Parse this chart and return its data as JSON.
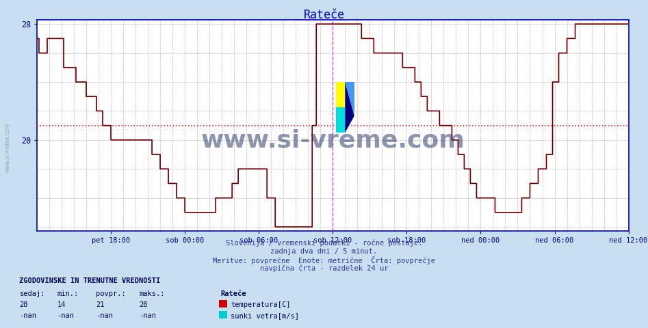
{
  "title": "Rateče",
  "title_color": "#0000bb",
  "bg_color": "#c8dff0",
  "plot_bg_color": "#ffffff",
  "grid_v_color": "#dd8888",
  "grid_h_color": "#aaaacc",
  "line_color": "#cc0000",
  "black_line_color": "#000000",
  "avg_line_color": "#dd2222",
  "avg_line_value": 21,
  "vline_color": "#cc44cc",
  "vline_color2": "#aa00aa",
  "ymin": 14,
  "ymax": 28,
  "xlabel_color": "#000088",
  "text_color": "#000066",
  "watermark": "www.si-vreme.com",
  "watermark_color": "#1a3060",
  "footnote_lines": [
    "Slovenija / vremenski podatki - ročne postaje.",
    "zadnja dva dni / 5 minut.",
    "Meritve: povprečne  Enote: metrične  Črta: povprečje",
    "navpična črta - razdelek 24 ur"
  ],
  "legend_title": "ZGODOVINSKE IN TRENUTNE VREDNOSTI",
  "legend_headers": [
    "sedaj:",
    "min.:",
    "povpr.:",
    "maks.:"
  ],
  "legend_values_temp": [
    "28",
    "14",
    "21",
    "28"
  ],
  "legend_values_wind": [
    "-nan",
    "-nan",
    "-nan",
    "-nan"
  ],
  "legend_series": [
    "temperatura[C]",
    "sunki vetra[m/s]"
  ],
  "legend_colors": [
    "#cc0000",
    "#00cccc"
  ],
  "x_tick_labels": [
    "pet 18:00",
    "sob 00:00",
    "sob 06:00",
    "sob 12:00",
    "sob 18:00",
    "ned 00:00",
    "ned 06:00",
    "ned 12:00"
  ],
  "n_points": 576,
  "temp_data": [
    27,
    27,
    26,
    26,
    26,
    26,
    26,
    26,
    26,
    26,
    27,
    27,
    27,
    27,
    27,
    27,
    27,
    27,
    27,
    27,
    27,
    27,
    27,
    27,
    27,
    27,
    25,
    25,
    25,
    25,
    25,
    25,
    25,
    25,
    25,
    25,
    25,
    25,
    24,
    24,
    24,
    24,
    24,
    24,
    24,
    24,
    24,
    24,
    23,
    23,
    23,
    23,
    23,
    23,
    23,
    23,
    23,
    23,
    22,
    22,
    22,
    22,
    22,
    22,
    21,
    21,
    21,
    21,
    21,
    21,
    21,
    21,
    20,
    20,
    20,
    20,
    20,
    20,
    20,
    20,
    20,
    20,
    20,
    20,
    20,
    20,
    20,
    20,
    20,
    20,
    20,
    20,
    20,
    20,
    20,
    20,
    20,
    20,
    20,
    20,
    20,
    20,
    20,
    20,
    20,
    20,
    20,
    20,
    20,
    20,
    20,
    20,
    19,
    19,
    19,
    19,
    19,
    19,
    19,
    19,
    18,
    18,
    18,
    18,
    18,
    18,
    18,
    18,
    17,
    17,
    17,
    17,
    17,
    17,
    17,
    17,
    16,
    16,
    16,
    16,
    16,
    16,
    16,
    16,
    15,
    15,
    15,
    15,
    15,
    15,
    15,
    15,
    15,
    15,
    15,
    15,
    15,
    15,
    15,
    15,
    15,
    15,
    15,
    15,
    15,
    15,
    15,
    15,
    15,
    15,
    15,
    15,
    15,
    15,
    16,
    16,
    16,
    16,
    16,
    16,
    16,
    16,
    16,
    16,
    16,
    16,
    16,
    16,
    16,
    16,
    17,
    17,
    17,
    17,
    17,
    17,
    18,
    18,
    18,
    18,
    18,
    18,
    18,
    18,
    18,
    18,
    18,
    18,
    18,
    18,
    18,
    18,
    18,
    18,
    18,
    18,
    18,
    18,
    18,
    18,
    18,
    18,
    18,
    18,
    16,
    16,
    16,
    16,
    16,
    16,
    16,
    16,
    14,
    14,
    14,
    14,
    14,
    14,
    14,
    14,
    14,
    14,
    14,
    14,
    14,
    14,
    14,
    14,
    14,
    14,
    14,
    14,
    14,
    14,
    14,
    14,
    14,
    14,
    14,
    14,
    14,
    14,
    14,
    14,
    14,
    14,
    14,
    14,
    21,
    21,
    21,
    21,
    28,
    28,
    28,
    28,
    28,
    28,
    28,
    28,
    28,
    28,
    28,
    28,
    28,
    28,
    28,
    28,
    28,
    28,
    28,
    28,
    28,
    28,
    28,
    28,
    28,
    28,
    28,
    28,
    28,
    28,
    28,
    28,
    28,
    28,
    28,
    28,
    28,
    28,
    28,
    28,
    28,
    28,
    28,
    28,
    27,
    27,
    27,
    27,
    27,
    27,
    27,
    27,
    27,
    27,
    27,
    27,
    26,
    26,
    26,
    26,
    26,
    26,
    26,
    26,
    26,
    26,
    26,
    26,
    26,
    26,
    26,
    26,
    26,
    26,
    26,
    26,
    26,
    26,
    26,
    26,
    26,
    26,
    26,
    26,
    25,
    25,
    25,
    25,
    25,
    25,
    25,
    25,
    25,
    25,
    25,
    25,
    24,
    24,
    24,
    24,
    24,
    24,
    23,
    23,
    23,
    23,
    23,
    23,
    22,
    22,
    22,
    22,
    22,
    22,
    22,
    22,
    22,
    22,
    22,
    22,
    21,
    21,
    21,
    21,
    21,
    21,
    21,
    21,
    21,
    21,
    21,
    21,
    20,
    20,
    20,
    20,
    20,
    20,
    19,
    19,
    19,
    19,
    19,
    19,
    18,
    18,
    18,
    18,
    18,
    18,
    17,
    17,
    17,
    17,
    17,
    17,
    16,
    16,
    16,
    16,
    16,
    16,
    16,
    16,
    16,
    16,
    16,
    16,
    16,
    16,
    16,
    16,
    16,
    16,
    15,
    15,
    15,
    15,
    15,
    15,
    15,
    15,
    15,
    15,
    15,
    15,
    15,
    15,
    15,
    15,
    15,
    15,
    15,
    15,
    15,
    15,
    15,
    15,
    15,
    15,
    16,
    16,
    16,
    16,
    16,
    16,
    16,
    16,
    17,
    17,
    17,
    17,
    17,
    17,
    17,
    17,
    18,
    18,
    18,
    18,
    18,
    18,
    18,
    18,
    19,
    19,
    19,
    19,
    19,
    19,
    24,
    24,
    24,
    24,
    24,
    24,
    26,
    26,
    26,
    26,
    26,
    26,
    26,
    26,
    27,
    27,
    27,
    27,
    27,
    27,
    27,
    27,
    28,
    28,
    28,
    28,
    28,
    28,
    28,
    28,
    28,
    28,
    28,
    28,
    28,
    28,
    28,
    28,
    28,
    28,
    28,
    28,
    28,
    28,
    28,
    28,
    28,
    28,
    28,
    28,
    28,
    28,
    28,
    28,
    28,
    28,
    28,
    28,
    28,
    28,
    28,
    28,
    28,
    28,
    28,
    28,
    28,
    28,
    28,
    28,
    28,
    28,
    28,
    28
  ],
  "black_data": [
    27,
    27,
    26,
    26,
    26,
    26,
    26,
    26,
    26,
    26,
    27,
    27,
    27,
    27,
    27,
    27,
    27,
    27,
    27,
    27,
    27,
    27,
    27,
    27,
    27,
    27,
    25,
    25,
    25,
    25,
    25,
    25,
    25,
    25,
    25,
    25,
    25,
    25,
    24,
    24,
    24,
    24,
    24,
    24,
    24,
    24,
    24,
    24,
    23,
    23,
    23,
    23,
    23,
    23,
    23,
    23,
    23,
    23,
    22,
    22,
    22,
    22,
    22,
    22,
    21,
    21,
    21,
    21,
    21,
    21,
    21,
    21,
    20,
    20,
    20,
    20,
    20,
    20,
    20,
    20,
    20,
    20,
    20,
    20,
    20,
    20,
    20,
    20,
    20,
    20,
    20,
    20,
    20,
    20,
    20,
    20,
    20,
    20,
    20,
    20,
    20,
    20,
    20,
    20,
    20,
    20,
    20,
    20,
    20,
    20,
    20,
    20,
    19,
    19,
    19,
    19,
    19,
    19,
    19,
    19,
    18,
    18,
    18,
    18,
    18,
    18,
    18,
    18,
    17,
    17,
    17,
    17,
    17,
    17,
    17,
    17,
    16,
    16,
    16,
    16,
    16,
    16,
    16,
    16,
    15,
    15,
    15,
    15,
    15,
    15,
    15,
    15,
    15,
    15,
    15,
    15,
    15,
    15,
    15,
    15,
    15,
    15,
    15,
    15,
    15,
    15,
    15,
    15,
    15,
    15,
    15,
    15,
    15,
    15,
    16,
    16,
    16,
    16,
    16,
    16,
    16,
    16,
    16,
    16,
    16,
    16,
    16,
    16,
    16,
    16,
    17,
    17,
    17,
    17,
    17,
    17,
    18,
    18,
    18,
    18,
    18,
    18,
    18,
    18,
    18,
    18,
    18,
    18,
    18,
    18,
    18,
    18,
    18,
    18,
    18,
    18,
    18,
    18,
    18,
    18,
    18,
    18,
    18,
    18,
    16,
    16,
    16,
    16,
    16,
    16,
    16,
    16,
    14,
    14,
    14,
    14,
    14,
    14,
    14,
    14,
    14,
    14,
    14,
    14,
    14,
    14,
    14,
    14,
    14,
    14,
    14,
    14,
    14,
    14,
    14,
    14,
    14,
    14,
    14,
    14,
    14,
    14,
    14,
    14,
    14,
    14,
    14,
    14,
    21,
    21,
    21,
    21,
    28,
    28,
    28,
    28,
    28,
    28,
    28,
    28,
    28,
    28,
    28,
    28,
    28,
    28,
    28,
    28,
    28,
    28,
    28,
    28,
    28,
    28,
    28,
    28,
    28,
    28,
    28,
    28,
    28,
    28,
    28,
    28,
    28,
    28,
    28,
    28,
    28,
    28,
    28,
    28,
    28,
    28,
    28,
    28,
    27,
    27,
    27,
    27,
    27,
    27,
    27,
    27,
    27,
    27,
    27,
    27,
    26,
    26,
    26,
    26,
    26,
    26,
    26,
    26,
    26,
    26,
    26,
    26,
    26,
    26,
    26,
    26,
    26,
    26,
    26,
    26,
    26,
    26,
    26,
    26,
    26,
    26,
    26,
    26,
    25,
    25,
    25,
    25,
    25,
    25,
    25,
    25,
    25,
    25,
    25,
    25,
    24,
    24,
    24,
    24,
    24,
    24,
    23,
    23,
    23,
    23,
    23,
    23,
    22,
    22,
    22,
    22,
    22,
    22,
    22,
    22,
    22,
    22,
    22,
    22,
    21,
    21,
    21,
    21,
    21,
    21,
    21,
    21,
    21,
    21,
    21,
    21,
    20,
    20,
    20,
    20,
    20,
    20,
    19,
    19,
    19,
    19,
    19,
    19,
    18,
    18,
    18,
    18,
    18,
    18,
    17,
    17,
    17,
    17,
    17,
    17,
    16,
    16,
    16,
    16,
    16,
    16,
    16,
    16,
    16,
    16,
    16,
    16,
    16,
    16,
    16,
    16,
    16,
    16,
    15,
    15,
    15,
    15,
    15,
    15,
    15,
    15,
    15,
    15,
    15,
    15,
    15,
    15,
    15,
    15,
    15,
    15,
    15,
    15,
    15,
    15,
    15,
    15,
    15,
    15,
    16,
    16,
    16,
    16,
    16,
    16,
    16,
    16,
    17,
    17,
    17,
    17,
    17,
    17,
    17,
    17,
    18,
    18,
    18,
    18,
    18,
    18,
    18,
    18,
    19,
    19,
    19,
    19,
    19,
    19,
    24,
    24,
    24,
    24,
    24,
    24,
    26,
    26,
    26,
    26,
    26,
    26,
    26,
    26,
    27,
    27,
    27,
    27,
    27,
    27,
    27,
    27,
    28,
    28,
    28,
    28,
    28,
    28,
    28,
    28,
    28,
    28,
    28,
    28,
    28,
    28,
    28,
    28,
    28,
    28,
    28,
    28,
    28,
    28,
    28,
    28,
    28,
    28,
    28,
    28,
    28,
    28,
    28,
    28,
    28,
    28,
    28,
    28,
    28,
    28,
    28,
    28,
    28,
    28,
    28,
    28,
    28,
    28,
    28,
    28,
    28,
    28,
    28,
    28
  ]
}
